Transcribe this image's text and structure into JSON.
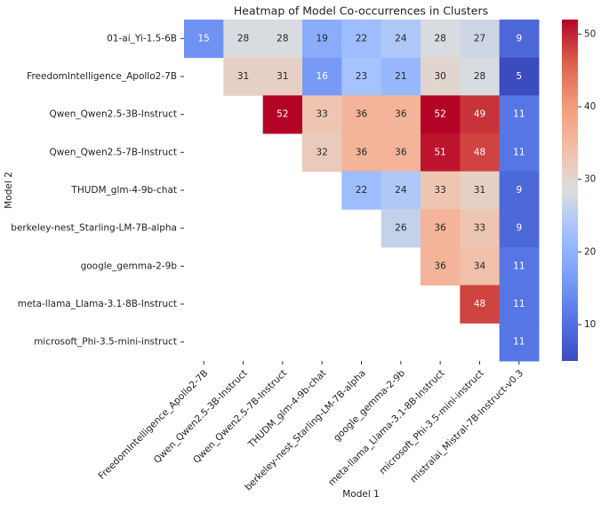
{
  "chart_data": {
    "type": "heatmap",
    "title": "Heatmap of Model Co-occurrences in Clusters",
    "x_label": "Model 1",
    "y_label": "Model 2",
    "x_categories": [
      "FreedomIntelligence_Apollo2-7B",
      "Qwen_Qwen2.5-3B-Instruct",
      "Qwen_Qwen2.5-7B-Instruct",
      "THUDM_glm-4-9b-chat",
      "berkeley-nest_Starling-LM-7B-alpha",
      "google_gemma-2-9b",
      "meta-llama_Llama-3.1-8B-Instruct",
      "microsoft_Phi-3.5-mini-instruct",
      "mistralai_Mistral-7B-Instruct-v0.3"
    ],
    "y_categories": [
      "01-ai_Yi-1.5-6B",
      "FreedomIntelligence_Apollo2-7B",
      "Qwen_Qwen2.5-3B-Instruct",
      "Qwen_Qwen2.5-7B-Instruct",
      "THUDM_glm-4-9b-chat",
      "berkeley-nest_Starling-LM-7B-alpha",
      "google_gemma-2-9b",
      "meta-llama_Llama-3.1-8B-Instruct",
      "microsoft_Phi-3.5-mini-instruct"
    ],
    "z": [
      [
        15,
        28,
        28,
        19,
        22,
        24,
        28,
        27,
        9
      ],
      [
        null,
        31,
        31,
        16,
        23,
        21,
        30,
        28,
        5
      ],
      [
        null,
        null,
        52,
        33,
        36,
        36,
        52,
        49,
        11
      ],
      [
        null,
        null,
        null,
        32,
        36,
        36,
        51,
        48,
        11
      ],
      [
        null,
        null,
        null,
        null,
        22,
        24,
        33,
        31,
        9
      ],
      [
        null,
        null,
        null,
        null,
        null,
        26,
        36,
        33,
        9
      ],
      [
        null,
        null,
        null,
        null,
        null,
        null,
        36,
        34,
        11
      ],
      [
        null,
        null,
        null,
        null,
        null,
        null,
        null,
        48,
        11
      ],
      [
        null,
        null,
        null,
        null,
        null,
        null,
        null,
        null,
        11
      ]
    ],
    "colormap": "coolwarm",
    "clim": [
      5,
      52
    ],
    "cticks": [
      10,
      20,
      30,
      40,
      50
    ]
  }
}
